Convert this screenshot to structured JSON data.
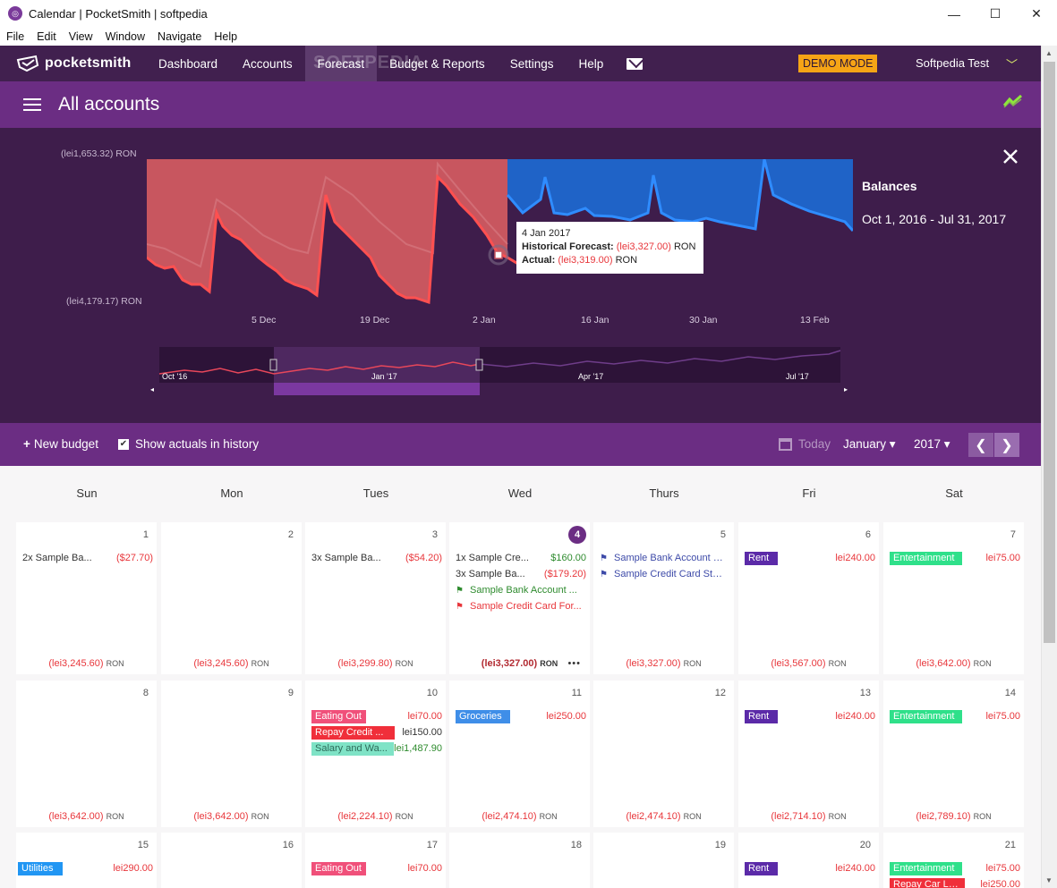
{
  "window": {
    "title": "Calendar | PocketSmith | softpedia",
    "minimize": "—",
    "maximize": "☐",
    "close": "✕"
  },
  "menu": [
    "File",
    "Edit",
    "View",
    "Window",
    "Navigate",
    "Help"
  ],
  "nav": {
    "brand": "pocketsmith",
    "links": [
      "Dashboard",
      "Accounts",
      "Forecast",
      "Budget & Reports",
      "Settings",
      "Help"
    ],
    "active": "Forecast",
    "demo": "DEMO MODE",
    "user": "Softpedia Test",
    "watermark": "SOFTPEDIA"
  },
  "header": {
    "title": "All accounts"
  },
  "chart": {
    "y_top": "(lei1,653.32) RON",
    "y_bottom": "(lei4,179.17) RON",
    "x_ticks": [
      "5 Dec",
      "19 Dec",
      "2 Jan",
      "16 Jan",
      "30 Jan",
      "13 Feb"
    ],
    "range_labels": [
      "Oct '16",
      "Jan '17",
      "Apr '17",
      "Jul '17"
    ],
    "balances_title": "Balances",
    "balances_range": "Oct 1, 2016 - Jul 31, 2017",
    "tooltip": {
      "date": "4 Jan 2017",
      "forecast_label": "Historical Forecast:",
      "forecast_value": "(lei3,327.00)",
      "actual_label": "Actual:",
      "actual_value": "(lei3,319.00)",
      "currency": "RON"
    },
    "colors": {
      "historical": "#c8565f",
      "actual": "#ff5a5a",
      "forecast": "#1f63c7"
    }
  },
  "toolbar": {
    "new_budget": "New budget",
    "show_actuals": "Show actuals in history",
    "show_actuals_checked": true,
    "today": "Today",
    "month": "January ▾",
    "year": "2017 ▾"
  },
  "calendar": {
    "dow": [
      "Sun",
      "Mon",
      "Tues",
      "Wed",
      "Thurs",
      "Fri",
      "Sat"
    ],
    "currency": "RON",
    "days": {
      "d1": {
        "num": "1",
        "balance": "(lei3,245.60)",
        "e1_name": "2x Sample Ba...",
        "e1_amt": "($27.70)"
      },
      "d2": {
        "num": "2",
        "balance": "(lei3,245.60)"
      },
      "d3": {
        "num": "3",
        "balance": "(lei3,299.80)",
        "e1_name": "3x Sample Ba...",
        "e1_amt": "($54.20)"
      },
      "d4": {
        "num": "4",
        "balance": "(lei3,327.00)",
        "more": "•••",
        "e1_name": "1x Sample Cre...",
        "e1_amt": "$160.00",
        "e2_name": "3x Sample Ba...",
        "e2_amt": "($179.20)",
        "e3_name": "Sample Bank Account ...",
        "e4_name": "Sample Credit Card For..."
      },
      "d5": {
        "num": "5",
        "balance": "(lei3,327.00)",
        "e1_name": "Sample Bank Account S...",
        "e2_name": "Sample Credit Card Sta..."
      },
      "d6": {
        "num": "6",
        "balance": "(lei3,567.00)",
        "e1_name": "Rent",
        "e1_amt": "lei240.00"
      },
      "d7": {
        "num": "7",
        "balance": "(lei3,642.00)",
        "e1_name": "Entertainment",
        "e1_amt": "lei75.00"
      },
      "d8": {
        "num": "8",
        "balance": "(lei3,642.00)"
      },
      "d9": {
        "num": "9",
        "balance": "(lei3,642.00)"
      },
      "d10": {
        "num": "10",
        "balance": "(lei2,224.10)",
        "e1_name": "Eating Out",
        "e1_amt": "lei70.00",
        "e2_name": "Repay Credit ...",
        "e2_amt": "lei150.00",
        "e3_name": "Salary and Wa...",
        "e3_amt": "lei1,487.90"
      },
      "d11": {
        "num": "11",
        "balance": "(lei2,474.10)",
        "e1_name": "Groceries",
        "e1_amt": "lei250.00"
      },
      "d12": {
        "num": "12",
        "balance": "(lei2,474.10)"
      },
      "d13": {
        "num": "13",
        "balance": "(lei2,714.10)",
        "e1_name": "Rent",
        "e1_amt": "lei240.00"
      },
      "d14": {
        "num": "14",
        "balance": "(lei2,789.10)",
        "e1_name": "Entertainment",
        "e1_amt": "lei75.00"
      },
      "d15": {
        "num": "15",
        "e1_name": "Utilities",
        "e1_amt": "lei290.00"
      },
      "d16": {
        "num": "16"
      },
      "d17": {
        "num": "17",
        "e1_name": "Eating Out",
        "e1_amt": "lei70.00"
      },
      "d18": {
        "num": "18"
      },
      "d19": {
        "num": "19"
      },
      "d20": {
        "num": "20",
        "e1_name": "Rent",
        "e1_amt": "lei240.00"
      },
      "d21": {
        "num": "21",
        "e1_name": "Entertainment",
        "e1_amt": "lei75.00",
        "e2_name": "Repay Car Loan",
        "e2_amt": "lei250.00"
      }
    }
  }
}
